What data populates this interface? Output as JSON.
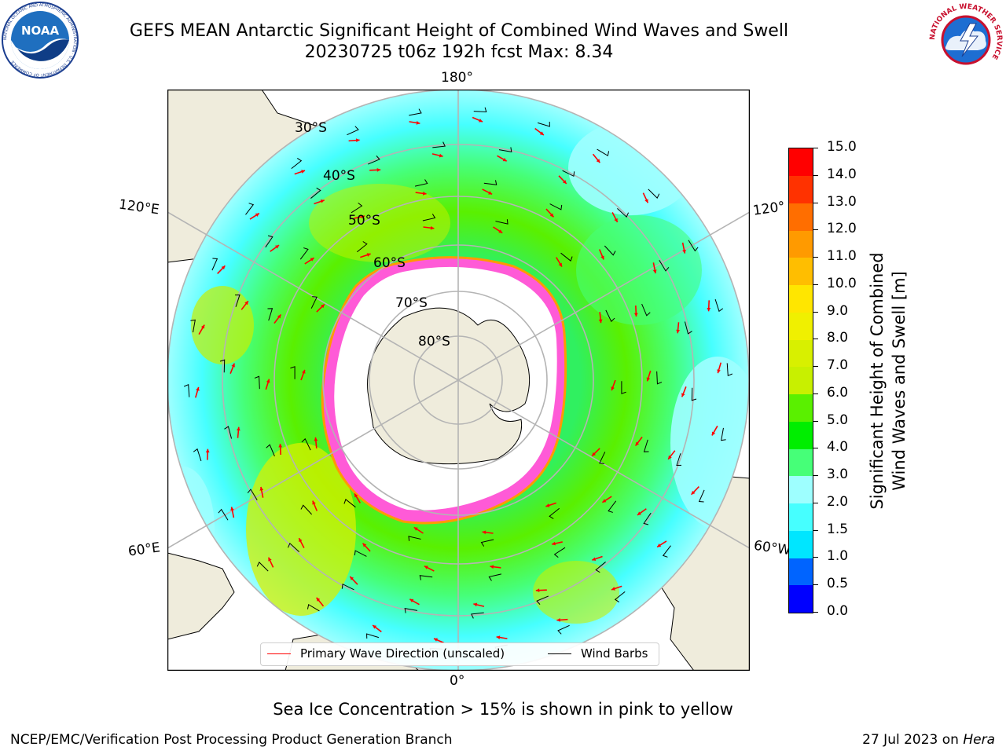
{
  "title": {
    "line1": "GEFS MEAN Antarctic Significant Height of Combined Wind Waves and Swell",
    "line2": "20230725 t06z 192h fcst   Max: 8.34"
  },
  "logos": {
    "left": "NOAA",
    "left_ring": "NATIONAL OCEANIC AND ATMOSPHERIC ADMINISTRATION · U.S. DEPARTMENT OF COMMERCE",
    "right_ring": "NATIONAL WEATHER SERVICE"
  },
  "map": {
    "projection": "south-polar-stereographic",
    "colors": {
      "land": "#efecdc",
      "ice": "#ff5ad7",
      "grid": "#b4b4b4",
      "ocean_low": "#9effff",
      "ocean_mid": "#30f060",
      "ocean_high": "#d8f000"
    },
    "lon_labels": {
      "top": "180°",
      "bottom": "0°",
      "left_upper": "120°E",
      "left_lower": "60°E",
      "right_upper": "120°",
      "right_lower": "60°W"
    },
    "lat_labels": [
      "30°S",
      "40°S",
      "50°S",
      "60°S",
      "70°S",
      "80°S"
    ],
    "legend": {
      "wave": "Primary Wave Direction (unscaled)",
      "barb": "Wind Barbs",
      "wave_color": "#ff0000",
      "barb_color": "#000000"
    }
  },
  "colorbar": {
    "label_line1": "Significant Height of Combined",
    "label_line2": "Wind Waves and Swell [m]",
    "ticks": [
      "0.0",
      "0.5",
      "1.0",
      "1.5",
      "2.0",
      "3.0",
      "4.0",
      "5.0",
      "6.0",
      "7.0",
      "8.0",
      "9.0",
      "10.0",
      "11.0",
      "12.0",
      "13.0",
      "14.0",
      "15.0"
    ],
    "colors": [
      "#0000ff",
      "#0064ff",
      "#00e6ff",
      "#46ffff",
      "#9effff",
      "#46ff78",
      "#00ee00",
      "#5af000",
      "#c8f000",
      "#d8f000",
      "#f0f000",
      "#ffe600",
      "#ffbe00",
      "#ff9a00",
      "#ff6e00",
      "#ff3200",
      "#ff0000"
    ]
  },
  "note": "Sea Ice Concentration > 15% is shown in pink to yellow",
  "credit": "NCEP/EMC/Verification Post Processing Product Generation Branch",
  "date": {
    "text": "27 Jul 2023 on ",
    "host": "Hera"
  }
}
